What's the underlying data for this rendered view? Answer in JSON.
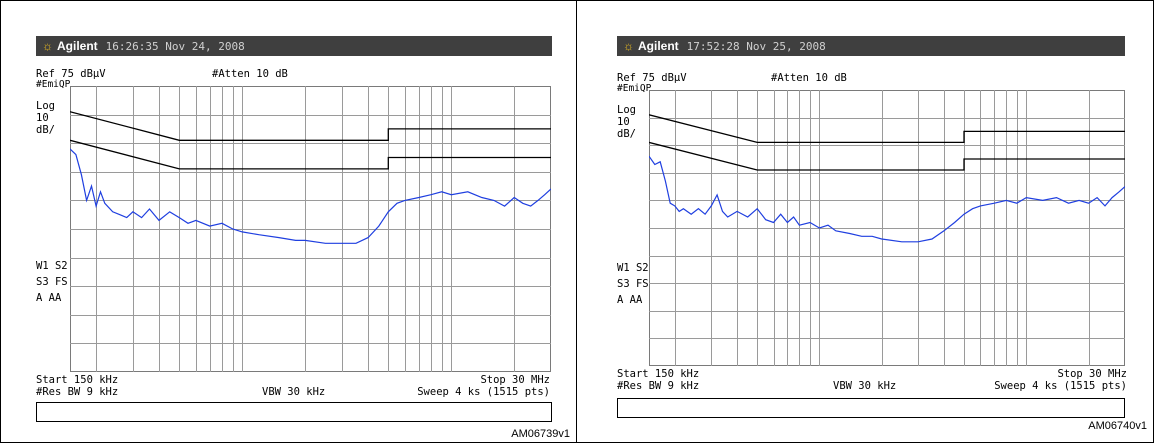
{
  "panels": [
    {
      "brand": "Agilent",
      "timestamp": "16:26:35  Nov 24, 2008",
      "ref": "Ref 75 dBµV",
      "atten": "#Atten 10 dB",
      "mode": "#EmiQP",
      "scale": [
        "Log",
        "10",
        "dB/"
      ],
      "markers": [
        "W1  S2",
        "S3  FS",
        "A   AA"
      ],
      "start": "Start 150 kHz",
      "stop": "Stop 30 MHz",
      "rbw": "#Res BW 9 kHz",
      "vbw": "VBW 30 kHz",
      "sweep": "Sweep 4 ks (1515 pts)",
      "code": "AM06739v1"
    },
    {
      "brand": "Agilent",
      "timestamp": "17:52:28  Nov 25, 2008",
      "ref": "Ref 75 dBµV",
      "atten": "#Atten 10 dB",
      "mode": "#EmiQP",
      "scale": [
        "Log",
        "10",
        "dB/"
      ],
      "markers": [
        "W1  S2",
        "S3  FS",
        "A   AA"
      ],
      "start": "Start 150 kHz",
      "stop": "Stop 30 MHz",
      "rbw": "#Res BW 9 kHz",
      "vbw": "VBW 30 kHz",
      "sweep": "Sweep 4 ks (1515 pts)",
      "code": "AM06740v1"
    }
  ],
  "chart_data": [
    {
      "type": "line",
      "x_scale": "log",
      "xlim_mhz": [
        0.15,
        30
      ],
      "ylim_dbuv": [
        -25,
        75
      ],
      "grid": true,
      "trace_color": "#1f3fe0",
      "limit_color": "#000000",
      "limits": [
        {
          "x": [
            0.15,
            0.5,
            5,
            5,
            30
          ],
          "y": [
            66,
            56,
            56,
            60,
            60
          ]
        },
        {
          "x": [
            0.15,
            0.5,
            5,
            5,
            30
          ],
          "y": [
            56,
            46,
            46,
            50,
            50
          ]
        }
      ],
      "trace": {
        "x": [
          0.15,
          0.16,
          0.17,
          0.18,
          0.19,
          0.2,
          0.21,
          0.22,
          0.24,
          0.26,
          0.28,
          0.3,
          0.33,
          0.36,
          0.4,
          0.45,
          0.5,
          0.55,
          0.6,
          0.7,
          0.8,
          0.9,
          1.0,
          1.2,
          1.5,
          1.8,
          2.0,
          2.5,
          3.0,
          3.5,
          4.0,
          4.5,
          5.0,
          5.5,
          6.0,
          7.0,
          8.0,
          9.0,
          10,
          12,
          14,
          16,
          18,
          20,
          22,
          24,
          26,
          28,
          30
        ],
        "y": [
          53,
          51,
          44,
          35,
          40,
          33,
          38,
          34,
          31,
          30,
          29,
          31,
          29,
          32,
          28,
          31,
          29,
          27,
          28,
          26,
          27,
          25,
          24,
          23,
          22,
          21,
          21,
          20,
          20,
          20,
          22,
          26,
          31,
          34,
          35,
          36,
          37,
          38,
          37,
          38,
          36,
          35,
          33,
          36,
          34,
          33,
          35,
          37,
          39
        ]
      }
    },
    {
      "type": "line",
      "x_scale": "log",
      "xlim_mhz": [
        0.15,
        30
      ],
      "ylim_dbuv": [
        -25,
        75
      ],
      "grid": true,
      "trace_color": "#1f3fe0",
      "limit_color": "#000000",
      "limits": [
        {
          "x": [
            0.15,
            0.5,
            5,
            5,
            30
          ],
          "y": [
            66,
            56,
            56,
            60,
            60
          ]
        },
        {
          "x": [
            0.15,
            0.5,
            5,
            5,
            30
          ],
          "y": [
            56,
            46,
            46,
            50,
            50
          ]
        }
      ],
      "trace": {
        "x": [
          0.15,
          0.16,
          0.17,
          0.18,
          0.19,
          0.2,
          0.21,
          0.22,
          0.24,
          0.26,
          0.28,
          0.3,
          0.32,
          0.34,
          0.36,
          0.4,
          0.45,
          0.5,
          0.55,
          0.6,
          0.65,
          0.7,
          0.75,
          0.8,
          0.9,
          1.0,
          1.1,
          1.2,
          1.4,
          1.6,
          1.8,
          2.0,
          2.5,
          3.0,
          3.5,
          4.0,
          4.5,
          5.0,
          5.5,
          6.0,
          7.0,
          8.0,
          9.0,
          10,
          12,
          14,
          16,
          18,
          20,
          22,
          24,
          26,
          28,
          30
        ],
        "y": [
          51,
          48,
          49,
          42,
          34,
          33,
          31,
          32,
          30,
          32,
          30,
          33,
          37,
          31,
          29,
          31,
          29,
          32,
          28,
          27,
          30,
          27,
          29,
          26,
          27,
          25,
          26,
          24,
          23,
          22,
          22,
          21,
          20,
          20,
          21,
          24,
          27,
          30,
          32,
          33,
          34,
          35,
          34,
          36,
          35,
          36,
          34,
          35,
          34,
          36,
          33,
          36,
          38,
          40
        ]
      }
    }
  ]
}
